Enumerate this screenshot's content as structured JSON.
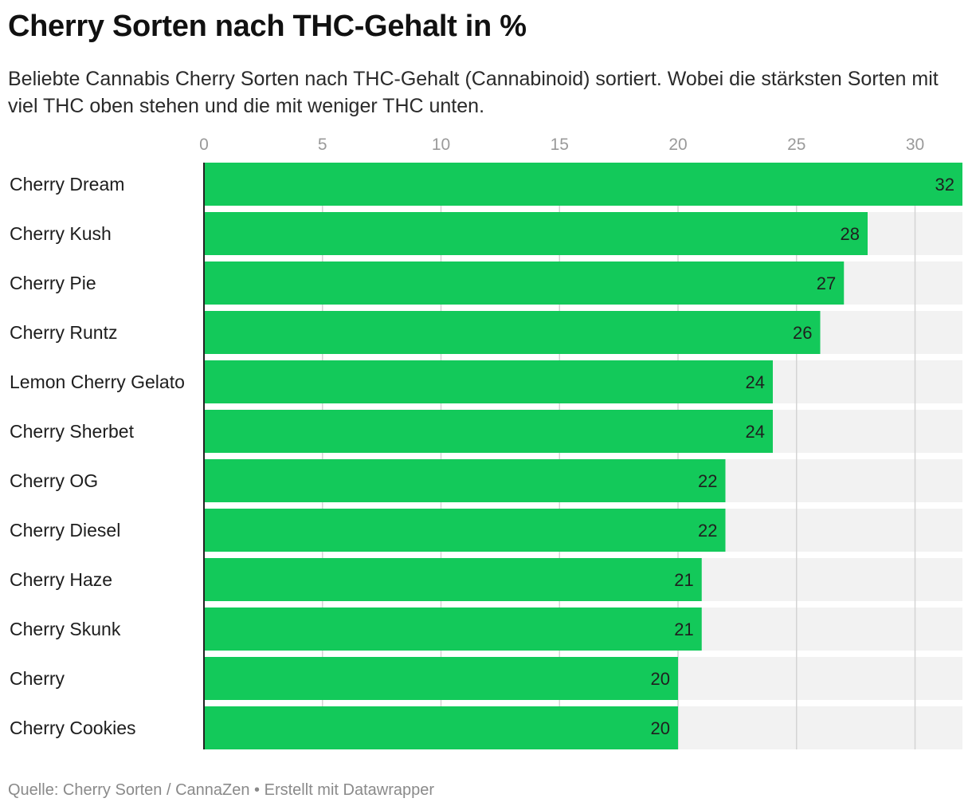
{
  "title": "Cherry Sorten nach THC-Gehalt in %",
  "subtitle": "Beliebte Cannabis Cherry Sorten nach THC-Gehalt (Cannabinoid) sortiert. Wobei die stärksten Sorten mit viel THC oben stehen und die mit weniger THC unten.",
  "footer": {
    "source": "Quelle: Cherry Sorten / CannaZen",
    "separator": " • ",
    "credit": "Erstellt mit Datawrapper"
  },
  "colors": {
    "bar": "#13c95a",
    "track": "#f2f2f2",
    "grid": "#d4d4d4",
    "axis": "#222222"
  },
  "chart_data": {
    "type": "bar",
    "orientation": "horizontal",
    "categories": [
      "Cherry Dream",
      "Cherry Kush",
      "Cherry Pie",
      "Cherry Runtz",
      "Lemon Cherry Gelato",
      "Cherry Sherbet",
      "Cherry OG",
      "Cherry Diesel",
      "Cherry Haze",
      "Cherry Skunk",
      "Cherry",
      "Cherry Cookies"
    ],
    "values": [
      32,
      28,
      27,
      26,
      24,
      24,
      22,
      22,
      21,
      21,
      20,
      20
    ],
    "xlim": [
      0,
      32
    ],
    "xticks": [
      0,
      5,
      10,
      15,
      20,
      25,
      30
    ],
    "grid": true,
    "value_labels": true
  }
}
